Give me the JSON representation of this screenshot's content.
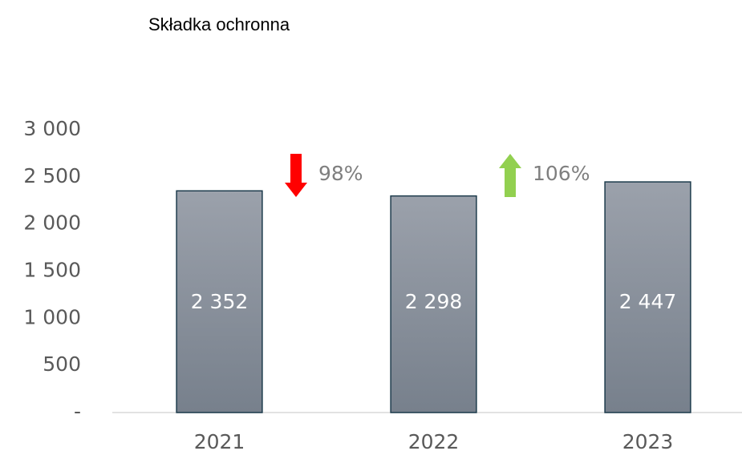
{
  "chart_data": {
    "type": "bar",
    "title": "Składka ochronna",
    "categories": [
      "2021",
      "2022",
      "2023"
    ],
    "values": [
      2352,
      2298,
      2447
    ],
    "value_labels": [
      "2 352",
      "2 298",
      "2 447"
    ],
    "ylim": [
      0,
      3000
    ],
    "yticks": [
      {
        "value": 0,
        "label": "-"
      },
      500,
      {
        "value": 1000,
        "label": "1 000"
      },
      {
        "value": 1500,
        "label": "1 500"
      },
      {
        "value": 2000,
        "label": "2 000"
      },
      {
        "value": 2500,
        "label": "2 500"
      },
      {
        "value": 3000,
        "label": "3 000"
      }
    ],
    "changes": [
      98,
      106
    ],
    "change_labels": [
      "98%",
      "106%"
    ],
    "change_colors": [
      "#ff0000",
      "#92d050"
    ]
  }
}
